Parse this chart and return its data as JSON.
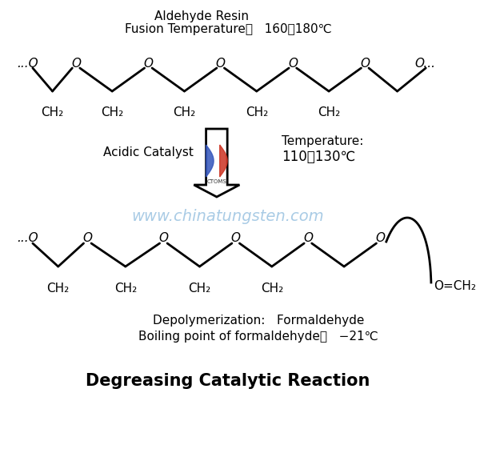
{
  "bg_color": "#ffffff",
  "title_text": "Degreasing Catalytic Reaction",
  "title_fontsize": 15,
  "top_label1": "Aldehyde Resin",
  "top_label2": "Fusion Temperature：   160～180℃",
  "acidic_catalyst_label": "Acidic Catalyst",
  "temperature_label1": "Temperature:",
  "temperature_label2": "110～130℃",
  "depolymerization_label": "Depolymerization:   Formaldehyde",
  "boiling_label": "Boiling point of formaldehyde：   −21℃",
  "watermark": "www.chinatungsten.com",
  "line_color": "#000000",
  "line_width": 2.0,
  "ch2_label": "CH₂",
  "o_label": "O",
  "watermark_color": "#5599cc",
  "logo_blue": "#3355bb",
  "logo_red": "#cc3322"
}
